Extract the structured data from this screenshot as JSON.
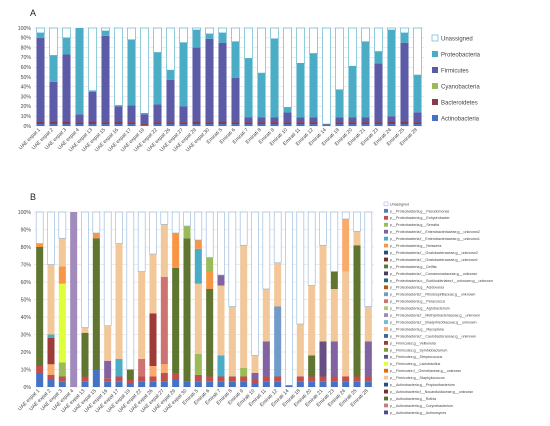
{
  "chart_data": [
    {
      "panel": "A",
      "type": "bar",
      "stacked": true,
      "ylim": [
        0,
        100
      ],
      "yticks": [
        "0%",
        "10%",
        "20%",
        "30%",
        "40%",
        "50%",
        "60%",
        "70%",
        "80%",
        "90%",
        "100%"
      ],
      "categories": [
        "UAE expat 1",
        "UAE expat 2",
        "UAE expat 3",
        "UAE expat 4",
        "UAE expat 13",
        "UAE expat 15",
        "UAE expat 16",
        "UAE expat 17",
        "UAE expat 19",
        "UAE expat 22",
        "UAE expat 26",
        "UAE expat 27",
        "UAE expat 29",
        "UAE expat 30",
        "Emirati 5",
        "Emirati 6",
        "Emirati 7",
        "Emirati 8",
        "Emirati 9",
        "Emirati 10",
        "Emirati 11",
        "Emirati 12",
        "Emirati 14",
        "Emirati 18",
        "Emirati 20",
        "Emirati 21",
        "Emirati 23",
        "Emirati 24",
        "Emirati 25",
        "Emirati 28"
      ],
      "legend": [
        "Unassigned",
        "Proteobacteria",
        "Firmicutes",
        "Cyanobacteria",
        "Bacteroidetes",
        "Actinobacteria"
      ],
      "series": [
        {
          "name": "Actinobacteria",
          "color": "#4472c4",
          "values": [
            2,
            2,
            2,
            2,
            2,
            2,
            2,
            2,
            1,
            2,
            2,
            2,
            2,
            2,
            2,
            2,
            2,
            2,
            2,
            2,
            2,
            2,
            1,
            2,
            2,
            2,
            2,
            2,
            2,
            2
          ]
        },
        {
          "name": "Bacteroidetes",
          "color": "#8b3a4e",
          "values": [
            3,
            3,
            3,
            2,
            3,
            2,
            3,
            2,
            1,
            2,
            2,
            2,
            3,
            2,
            3,
            2,
            2,
            2,
            2,
            2,
            2,
            2,
            0,
            2,
            2,
            2,
            2,
            3,
            3,
            2
          ]
        },
        {
          "name": "Cyanobacteria",
          "color": "#9bbb59",
          "values": [
            0,
            0,
            0,
            0,
            0,
            0,
            0,
            0,
            0,
            0,
            0,
            0,
            0,
            0,
            0,
            0,
            0,
            0,
            0,
            0,
            0,
            0,
            0,
            0,
            0,
            0,
            0,
            0,
            0,
            0
          ]
        },
        {
          "name": "Firmicutes",
          "color": "#5b5ba8",
          "values": [
            85,
            40,
            68,
            8,
            30,
            88,
            15,
            17,
            10,
            18,
            43,
            16,
            75,
            85,
            80,
            45,
            5,
            5,
            5,
            10,
            5,
            5,
            1,
            5,
            5,
            5,
            60,
            5,
            80,
            10
          ]
        },
        {
          "name": "Proteobacteria",
          "color": "#4bacc6",
          "values": [
            5,
            27,
            17,
            88,
            1,
            5,
            1,
            67,
            1,
            53,
            10,
            65,
            18,
            5,
            10,
            37,
            60,
            45,
            80,
            5,
            55,
            65,
            0,
            28,
            52,
            77,
            12,
            88,
            10,
            38
          ]
        },
        {
          "name": "Unassigned",
          "color": "#ffffff",
          "values": [
            5,
            28,
            10,
            0,
            64,
            3,
            79,
            12,
            87,
            25,
            43,
            15,
            2,
            6,
            5,
            14,
            31,
            46,
            11,
            81,
            36,
            26,
            98,
            63,
            39,
            14,
            24,
            2,
            5,
            48
          ]
        }
      ]
    },
    {
      "panel": "B",
      "type": "bar",
      "stacked": true,
      "ylim": [
        0,
        100
      ],
      "yticks": [
        "0%",
        "10%",
        "20%",
        "30%",
        "40%",
        "50%",
        "60%",
        "70%",
        "80%",
        "90%",
        "100%"
      ],
      "categories": [
        "UAE expat 1",
        "UAE expat 2",
        "UAE expat 3",
        "UAE expat 4",
        "UAE expat 13",
        "UAE expat 15",
        "UAE expat 16",
        "UAE expat 17",
        "UAE expat 19",
        "UAE expat 22",
        "UAE expat 26",
        "UAE expat 27",
        "UAE expat 29",
        "UAE expat 30",
        "Emirati 5",
        "Emirati 6",
        "Emirati 7",
        "Emirati 8",
        "Emirati 9",
        "Emirati 10",
        "Emirati 11",
        "Emirati 12",
        "Emirati 14",
        "Emirati 18",
        "Emirati 20",
        "Emirati 21",
        "Emirati 23",
        "Emirati 24",
        "Emirati 25",
        "Emirati 28"
      ],
      "legend": [
        "Unassigned",
        "p__Proteobacteria;g__Pseudomonas",
        "p__Proteobacteria;g__Enhydrobacter",
        "p__Proteobacteria;g__Serratia",
        "p__Proteobacteria;f__Enterobacteriaceae;g__unknown2",
        "p__Proteobacteria;f__Enterobacteriaceae;g__unknown1",
        "p__Proteobacteria;g__Neisseria",
        "p__Proteobacteria;f__Oxalobacteraceae;g__unknown2",
        "p__Proteobacteria;f__Oxalobacteraceae;g__unknown1",
        "p__Proteobacteria;g__Delftia",
        "p__Proteobacteria;f__Comamonadaceae;g__unknown",
        "p__Proteobacteria;o__Burkholderiales;f__unknown;g__unknown",
        "p__Proteobacteria;g__Acidovorax",
        "p__Proteobacteria;f__Rhodospirillaceae;g__unknown",
        "p__Proteobacteria;g__Paracoccus",
        "p__Proteobacteria;g__Agrobacterium",
        "p__Proteobacteria;f__Methylobacteriaceae;g__unknown",
        "p__Proteobacteria;f__Bradyrhizobiaceae;g__unknown",
        "p__Proteobacteria;g__Mycoplana",
        "p__Proteobacteria;f__Caulobacteraceae;g__unknown",
        "p__Firmicutes;g__Veillonella",
        "p__Firmicutes;g__Symbiobacterium",
        "p__Firmicutes;g__Streptococcus",
        "p__Firmicutes;g__Lactobacillus",
        "p__Firmicutes;f__Gemellaceae;g__unknown",
        "p__Firmicutes;g__Staphylococcus",
        "p__Actinobacteria;g__Propionibacterium",
        "p__Actinobacteria;f__Nocardioidaceae;g__unknown",
        "p__Actinobacteria;g__Rothia",
        "p__Actinobacteria;g__Corynebacterium",
        "p__Actinobacteria;g__Actinomyces"
      ],
      "legend_colors": [
        "#ffffff",
        "#4f81bd",
        "#c0504d",
        "#9bbb59",
        "#8064a2",
        "#4bacc6",
        "#f79646",
        "#2c4d75",
        "#772c2a",
        "#5f7530",
        "#4d3b62",
        "#276a7c",
        "#b65708",
        "#729aca",
        "#cd7371",
        "#afc97a",
        "#a18bbd",
        "#6fbdd2",
        "#f9ab6b",
        "#3a679c",
        "#9e3b38",
        "#7f9c40",
        "#664f83",
        "#dfff3a",
        "#e46c0a",
        "#f2c89a",
        "#284e7e",
        "#7b2c2c",
        "#5a6e2e",
        "#c08080",
        "#4a4a8c"
      ],
      "stacks": [
        [
          [
            "#4472c4",
            8
          ],
          [
            "#c0504d",
            4
          ],
          [
            "#5f7530",
            68
          ],
          [
            "#f79646",
            2
          ],
          [
            "#ffffff",
            18
          ]
        ],
        [
          [
            "#4472c4",
            4
          ],
          [
            "#c0504d",
            3
          ],
          [
            "#f9ab6b",
            6
          ],
          [
            "#9e3b38",
            15
          ],
          [
            "#4bacc6",
            2
          ],
          [
            "#f2c89a",
            40
          ],
          [
            "#ffffff",
            30
          ]
        ],
        [
          [
            "#4472c4",
            3
          ],
          [
            "#c0504d",
            3
          ],
          [
            "#9bbb59",
            8
          ],
          [
            "#dfff3a",
            45
          ],
          [
            "#f79646",
            10
          ],
          [
            "#f2c89a",
            16
          ],
          [
            "#ffffff",
            15
          ]
        ],
        [
          [
            "#a18bbd",
            100
          ]
        ],
        [
          [
            "#4472c4",
            3
          ],
          [
            "#c0504d",
            3
          ],
          [
            "#5f7530",
            25
          ],
          [
            "#f2c89a",
            3
          ],
          [
            "#ffffff",
            66
          ]
        ],
        [
          [
            "#4472c4",
            10
          ],
          [
            "#5f7530",
            75
          ],
          [
            "#f79646",
            3
          ],
          [
            "#ffffff",
            12
          ]
        ],
        [
          [
            "#4472c4",
            3
          ],
          [
            "#c0504d",
            2
          ],
          [
            "#8064a2",
            10
          ],
          [
            "#f2c89a",
            20
          ],
          [
            "#ffffff",
            65
          ]
        ],
        [
          [
            "#4472c4",
            3
          ],
          [
            "#c0504d",
            3
          ],
          [
            "#4bacc6",
            10
          ],
          [
            "#f2c89a",
            66
          ],
          [
            "#ffffff",
            18
          ]
        ],
        [
          [
            "#4472c4",
            2
          ],
          [
            "#c0504d",
            2
          ],
          [
            "#5f7530",
            6
          ],
          [
            "#ffffff",
            90
          ]
        ],
        [
          [
            "#4472c4",
            3
          ],
          [
            "#c0504d",
            3
          ],
          [
            "#cd7371",
            10
          ],
          [
            "#f2c89a",
            50
          ],
          [
            "#ffffff",
            34
          ]
        ],
        [
          [
            "#4472c4",
            3
          ],
          [
            "#c0504d",
            3
          ],
          [
            "#f9ab6b",
            6
          ],
          [
            "#9e3b38",
            30
          ],
          [
            "#f2c89a",
            34
          ],
          [
            "#ffffff",
            24
          ]
        ],
        [
          [
            "#4472c4",
            3
          ],
          [
            "#c0504d",
            5
          ],
          [
            "#f9ab6b",
            5
          ],
          [
            "#cd7371",
            50
          ],
          [
            "#f2c89a",
            30
          ],
          [
            "#ffffff",
            7
          ]
        ],
        [
          [
            "#4472c4",
            4
          ],
          [
            "#c0504d",
            4
          ],
          [
            "#5f7530",
            60
          ],
          [
            "#f79646",
            20
          ],
          [
            "#ffffff",
            12
          ]
        ],
        [
          [
            "#4472c4",
            3
          ],
          [
            "#5f7530",
            82
          ],
          [
            "#9bbb59",
            7
          ],
          [
            "#ffffff",
            8
          ]
        ],
        [
          [
            "#4472c4",
            3
          ],
          [
            "#c0504d",
            4
          ],
          [
            "#9bbb59",
            12
          ],
          [
            "#f2c89a",
            40
          ],
          [
            "#4bacc6",
            20
          ],
          [
            "#f79646",
            5
          ],
          [
            "#ffffff",
            16
          ]
        ],
        [
          [
            "#4472c4",
            3
          ],
          [
            "#c0504d",
            3
          ],
          [
            "#5f7530",
            50
          ],
          [
            "#f79646",
            10
          ],
          [
            "#9bbb59",
            8
          ],
          [
            "#ffffff",
            26
          ]
        ],
        [
          [
            "#4472c4",
            3
          ],
          [
            "#c0504d",
            3
          ],
          [
            "#4bacc6",
            12
          ],
          [
            "#f2c89a",
            40
          ],
          [
            "#8064a2",
            6
          ],
          [
            "#ffffff",
            36
          ]
        ],
        [
          [
            "#4472c4",
            3
          ],
          [
            "#c0504d",
            3
          ],
          [
            "#f2c89a",
            40
          ],
          [
            "#ffffff",
            54
          ]
        ],
        [
          [
            "#4472c4",
            3
          ],
          [
            "#c0504d",
            3
          ],
          [
            "#9bbb59",
            5
          ],
          [
            "#f2c89a",
            70
          ],
          [
            "#ffffff",
            19
          ]
        ],
        [
          [
            "#4472c4",
            2
          ],
          [
            "#c0504d",
            2
          ],
          [
            "#8064a2",
            4
          ],
          [
            "#f2c89a",
            10
          ],
          [
            "#ffffff",
            82
          ]
        ],
        [
          [
            "#4472c4",
            3
          ],
          [
            "#c0504d",
            3
          ],
          [
            "#8064a2",
            20
          ],
          [
            "#f2c89a",
            30
          ],
          [
            "#ffffff",
            44
          ]
        ],
        [
          [
            "#4472c4",
            3
          ],
          [
            "#c0504d",
            3
          ],
          [
            "#729aca",
            40
          ],
          [
            "#f2c89a",
            25
          ],
          [
            "#ffffff",
            29
          ]
        ],
        [
          [
            "#4472c4",
            1
          ],
          [
            "#ffffff",
            99
          ]
        ],
        [
          [
            "#4472c4",
            3
          ],
          [
            "#c0504d",
            3
          ],
          [
            "#f2c89a",
            30
          ],
          [
            "#ffffff",
            64
          ]
        ],
        [
          [
            "#4472c4",
            3
          ],
          [
            "#c0504d",
            3
          ],
          [
            "#5f7530",
            12
          ],
          [
            "#f2c89a",
            40
          ],
          [
            "#ffffff",
            42
          ]
        ],
        [
          [
            "#4472c4",
            3
          ],
          [
            "#c0504d",
            3
          ],
          [
            "#664f83",
            20
          ],
          [
            "#f2c89a",
            55
          ],
          [
            "#ffffff",
            19
          ]
        ],
        [
          [
            "#4472c4",
            3
          ],
          [
            "#c0504d",
            3
          ],
          [
            "#8064a2",
            20
          ],
          [
            "#f2c89a",
            30
          ],
          [
            "#5f7530",
            10
          ],
          [
            "#ffffff",
            34
          ]
        ],
        [
          [
            "#4472c4",
            3
          ],
          [
            "#c0504d",
            3
          ],
          [
            "#f2c89a",
            60
          ],
          [
            "#f9ab6b",
            30
          ],
          [
            "#ffffff",
            4
          ]
        ],
        [
          [
            "#4472c4",
            3
          ],
          [
            "#c0504d",
            3
          ],
          [
            "#5f7530",
            75
          ],
          [
            "#f2c89a",
            8
          ],
          [
            "#ffffff",
            11
          ]
        ],
        [
          [
            "#4472c4",
            3
          ],
          [
            "#c0504d",
            3
          ],
          [
            "#8064a2",
            20
          ],
          [
            "#f2c89a",
            20
          ],
          [
            "#ffffff",
            54
          ]
        ]
      ]
    }
  ],
  "panel_labels": [
    "A",
    "B"
  ]
}
